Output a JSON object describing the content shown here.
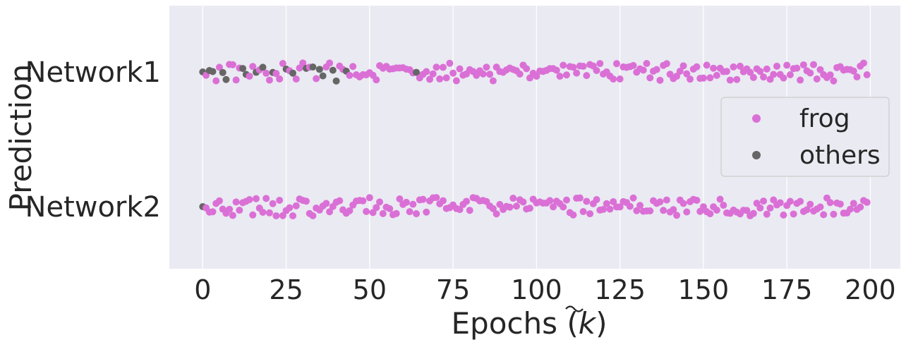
{
  "chart_data": {
    "type": "scatter",
    "xlabel_prefix": "Epochs (",
    "xlabel_symbol": "k",
    "xlabel_suffix": ")",
    "ylabel": "Prediction",
    "categories": [
      "Network1",
      "Network2"
    ],
    "xlim": [
      -10,
      209
    ],
    "xticks": [
      0,
      25,
      50,
      75,
      100,
      125,
      150,
      175,
      200
    ],
    "grid": true,
    "legend_position": "right",
    "series": [
      {
        "name": "frog",
        "color": "#da70d6"
      },
      {
        "name": "others",
        "color": "#666666"
      }
    ],
    "points": [
      {
        "x": 0,
        "cat": "Network1",
        "label": "others"
      },
      {
        "x": 1,
        "cat": "Network1",
        "label": "frog"
      },
      {
        "x": 2,
        "cat": "Network1",
        "label": "others"
      },
      {
        "x": 3,
        "cat": "Network1",
        "label": "others"
      },
      {
        "x": 4,
        "cat": "Network1",
        "label": "frog"
      },
      {
        "x": 5,
        "cat": "Network1",
        "label": "frog"
      },
      {
        "x": 6,
        "cat": "Network1",
        "label": "others"
      },
      {
        "x": 7,
        "cat": "Network1",
        "label": "others"
      },
      {
        "x": 8,
        "cat": "Network1",
        "label": "frog"
      },
      {
        "x": 9,
        "cat": "Network1",
        "label": "frog"
      },
      {
        "x": 10,
        "cat": "Network1",
        "label": "frog"
      },
      {
        "x": 11,
        "cat": "Network1",
        "label": "frog"
      },
      {
        "x": 12,
        "cat": "Network1",
        "label": "others"
      },
      {
        "x": 13,
        "cat": "Network1",
        "label": "others"
      },
      {
        "x": 14,
        "cat": "Network1",
        "label": "frog"
      },
      {
        "x": 15,
        "cat": "Network1",
        "label": "frog"
      },
      {
        "x": 16,
        "cat": "Network1",
        "label": "others"
      },
      {
        "x": 17,
        "cat": "Network1",
        "label": "frog"
      },
      {
        "x": 18,
        "cat": "Network1",
        "label": "others"
      },
      {
        "x": 19,
        "cat": "Network1",
        "label": "frog"
      },
      {
        "x": 20,
        "cat": "Network1",
        "label": "frog"
      },
      {
        "x": 21,
        "cat": "Network1",
        "label": "others"
      },
      {
        "x": 22,
        "cat": "Network1",
        "label": "frog"
      },
      {
        "x": 23,
        "cat": "Network1",
        "label": "frog"
      },
      {
        "x": 24,
        "cat": "Network1",
        "label": "frog"
      },
      {
        "x": 25,
        "cat": "Network1",
        "label": "others"
      },
      {
        "x": 26,
        "cat": "Network1",
        "label": "frog"
      },
      {
        "x": 27,
        "cat": "Network1",
        "label": "others"
      },
      {
        "x": 28,
        "cat": "Network1",
        "label": "frog"
      },
      {
        "x": 29,
        "cat": "Network1",
        "label": "frog"
      },
      {
        "x": 30,
        "cat": "Network1",
        "label": "frog"
      },
      {
        "x": 31,
        "cat": "Network1",
        "label": "others"
      },
      {
        "x": 32,
        "cat": "Network1",
        "label": "frog"
      },
      {
        "x": 33,
        "cat": "Network1",
        "label": "others"
      },
      {
        "x": 34,
        "cat": "Network1",
        "label": "frog"
      },
      {
        "x": 35,
        "cat": "Network1",
        "label": "others"
      },
      {
        "x": 36,
        "cat": "Network1",
        "label": "others"
      },
      {
        "x": 37,
        "cat": "Network1",
        "label": "frog"
      },
      {
        "x": 38,
        "cat": "Network1",
        "label": "frog"
      },
      {
        "x": 39,
        "cat": "Network1",
        "label": "others"
      },
      {
        "x": 40,
        "cat": "Network1",
        "label": "others"
      },
      {
        "x": 41,
        "cat": "Network1",
        "label": "frog"
      },
      {
        "x": 42,
        "cat": "Network1",
        "label": "frog"
      },
      {
        "x": 43,
        "cat": "Network1",
        "label": "others"
      },
      {
        "x": 64,
        "cat": "Network1",
        "label": "others"
      },
      {
        "x": 0,
        "cat": "Network2",
        "label": "others"
      }
    ]
  }
}
